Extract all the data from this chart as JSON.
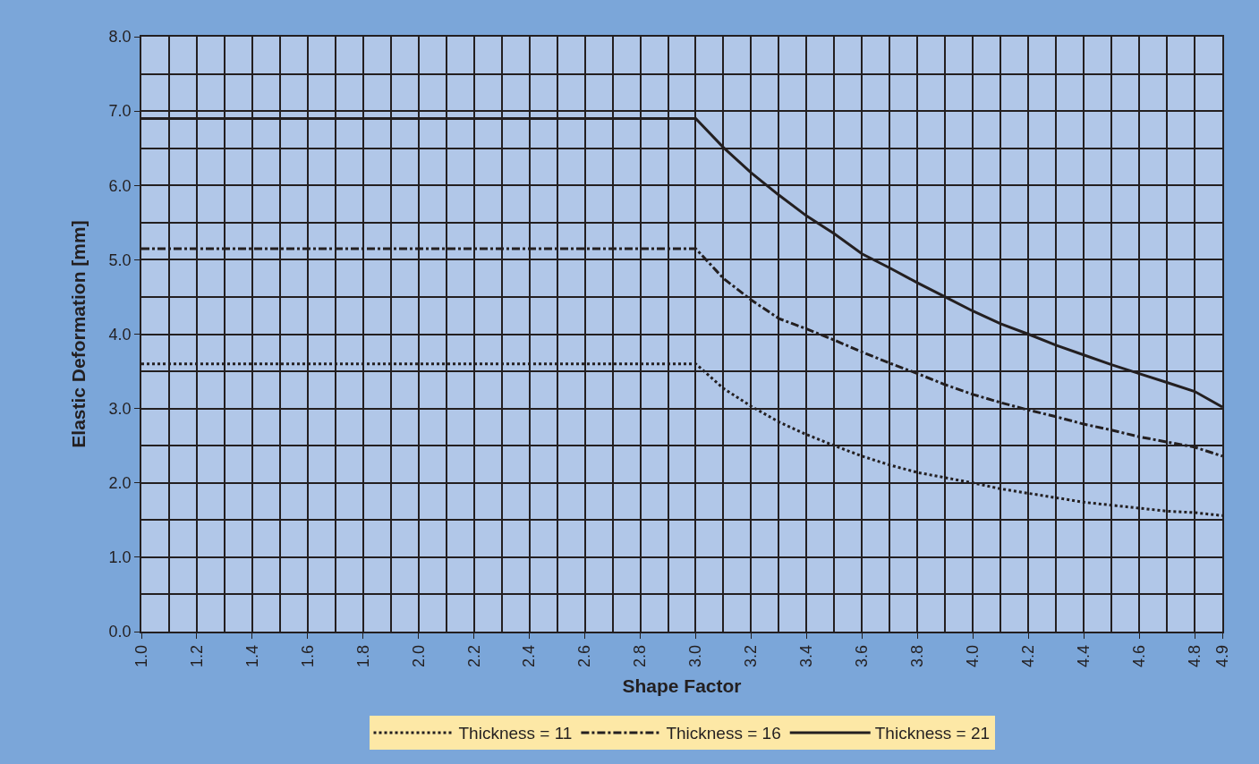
{
  "chart_data": {
    "type": "line",
    "xlabel": "Shape Factor",
    "ylabel": "Elastic Deformation [mm]",
    "x": [
      1.0,
      3.0,
      3.1,
      3.2,
      3.3,
      3.4,
      3.5,
      3.6,
      3.7,
      3.8,
      3.9,
      4.0,
      4.1,
      4.2,
      4.3,
      4.4,
      4.5,
      4.6,
      4.7,
      4.8,
      4.9
    ],
    "series": [
      {
        "name": "Thickness = 11",
        "color": "#231f20",
        "line_style": "dotted",
        "values": [
          3.6,
          3.6,
          3.27,
          3.03,
          2.82,
          2.65,
          2.5,
          2.36,
          2.24,
          2.14,
          2.07,
          2.0,
          1.92,
          1.86,
          1.8,
          1.74,
          1.7,
          1.66,
          1.62,
          1.6,
          1.56
        ]
      },
      {
        "name": "Thickness = 16",
        "color": "#231f20",
        "line_style": "dashdot",
        "values": [
          5.15,
          5.15,
          4.75,
          4.46,
          4.21,
          4.07,
          3.92,
          3.76,
          3.61,
          3.47,
          3.32,
          3.19,
          3.08,
          2.98,
          2.89,
          2.79,
          2.71,
          2.62,
          2.55,
          2.48,
          2.36
        ]
      },
      {
        "name": "Thickness = 21",
        "color": "#231f20",
        "line_style": "solid",
        "values": [
          6.9,
          6.9,
          6.51,
          6.17,
          5.87,
          5.59,
          5.35,
          5.08,
          4.89,
          4.69,
          4.5,
          4.31,
          4.14,
          4.0,
          3.85,
          3.72,
          3.59,
          3.47,
          3.35,
          3.23,
          3.02
        ]
      }
    ],
    "xlim": [
      1.0,
      4.9
    ],
    "xticks": [
      {
        "value": 1.0,
        "label": "1.0"
      },
      {
        "value": 1.2,
        "label": "1.2"
      },
      {
        "value": 1.4,
        "label": "1.4"
      },
      {
        "value": 1.6,
        "label": "1.6"
      },
      {
        "value": 1.8,
        "label": "1.8"
      },
      {
        "value": 2.0,
        "label": "2.0"
      },
      {
        "value": 2.2,
        "label": "2.2"
      },
      {
        "value": 2.4,
        "label": "2.4"
      },
      {
        "value": 2.6,
        "label": "2.6"
      },
      {
        "value": 2.8,
        "label": "2.8"
      },
      {
        "value": 3.0,
        "label": "3.0"
      },
      {
        "value": 3.2,
        "label": "3.2"
      },
      {
        "value": 3.4,
        "label": "3.4"
      },
      {
        "value": 3.6,
        "label": "3.6"
      },
      {
        "value": 3.8,
        "label": "3.8"
      },
      {
        "value": 4.0,
        "label": "4.0"
      },
      {
        "value": 4.2,
        "label": "4.2"
      },
      {
        "value": 4.4,
        "label": "4.4"
      },
      {
        "value": 4.6,
        "label": "4.6"
      },
      {
        "value": 4.8,
        "label": "4.8"
      },
      {
        "value": 4.9,
        "label": "4.9"
      }
    ],
    "ylim": [
      0,
      8
    ],
    "yticks": [
      {
        "value": 0,
        "label": "0.0"
      },
      {
        "value": 1,
        "label": "1.0"
      },
      {
        "value": 2,
        "label": "2.0"
      },
      {
        "value": 3,
        "label": "3.0"
      },
      {
        "value": 4,
        "label": "4.0"
      },
      {
        "value": 5,
        "label": "5.0"
      },
      {
        "value": 6,
        "label": "6.0"
      },
      {
        "value": 7,
        "label": "7.0"
      },
      {
        "value": 8,
        "label": "8.0"
      }
    ],
    "grid": true,
    "legend": "bottom",
    "marker": "none"
  }
}
